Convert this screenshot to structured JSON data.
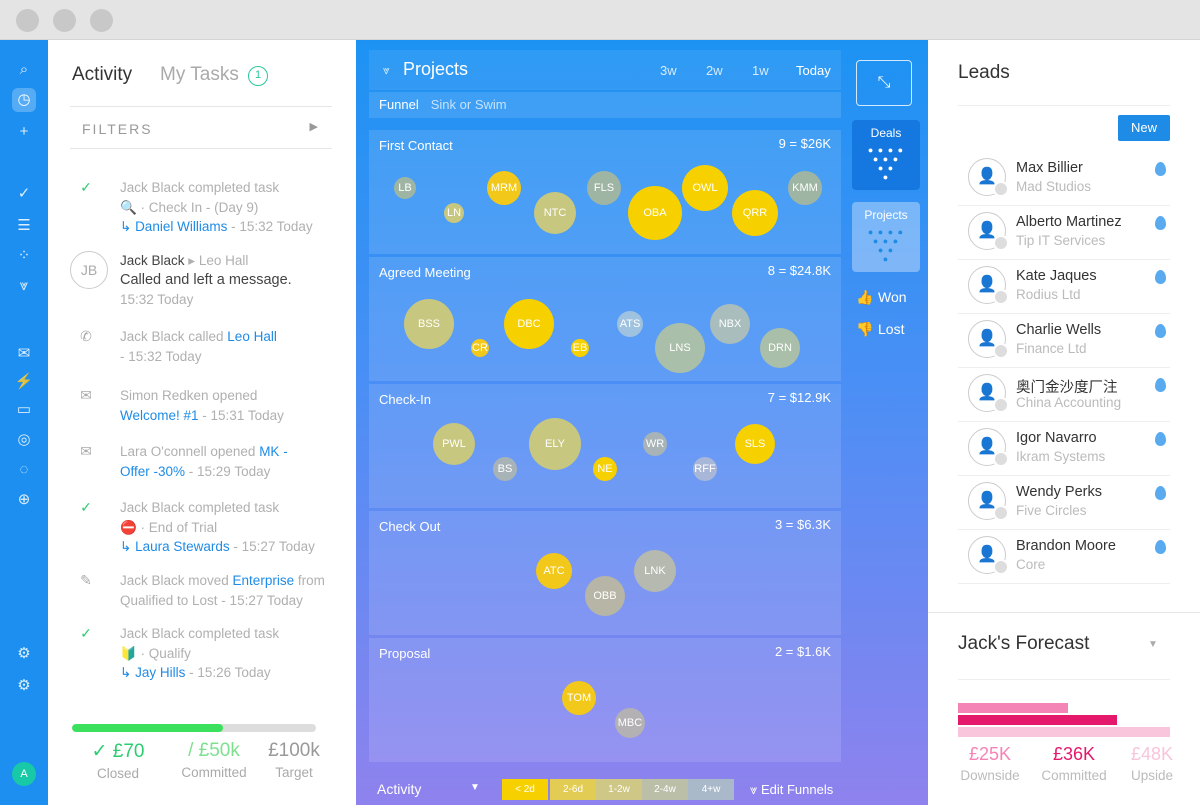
{
  "activity": {
    "tab_activity": "Activity",
    "tab_tasks": "My Tasks",
    "tasks_count": "1",
    "filters_label": "FILTERS",
    "feed": [
      {
        "line1": "Jack Black completed task",
        "line2": "🔍 · Check In - (Day 9)",
        "link": "Daniel Williams",
        "time": " - 15:32 Today"
      },
      {
        "who": "Jack Black",
        "arrow": "▸",
        "target": "Leo Hall",
        "msg": "Called and left a message.",
        "time": "15:32 Today",
        "initials": "JB"
      },
      {
        "pre": "Jack Black called ",
        "link": "Leo Hall",
        "time": "- 15:32 Today"
      },
      {
        "pre": "Simon Redken opened",
        "link": "Welcome! #1",
        "time": " - 15:31 Today"
      },
      {
        "pre": "Lara O'connell opened ",
        "link": "MK -",
        "link2": "Offer -30%",
        "time": " - 15:29 Today"
      },
      {
        "line1": "Jack Black completed task",
        "line2": "⛔ · End of Trial",
        "link": "Laura Stewards",
        "time": " - 15:27 Today"
      },
      {
        "pre": "Jack Black moved ",
        "link": "Enterprise",
        "post": " from",
        "line2": "Qualified to Lost - 15:27 Today"
      },
      {
        "line1": "Jack Black completed task",
        "line2": "🔰 · Qualify",
        "link": "Jay Hills",
        "time": " - 15:26 Today"
      }
    ],
    "progress_fraction": 0.62,
    "stats": [
      {
        "value": "✓ £70",
        "label": "Closed",
        "color": "#2ecc71"
      },
      {
        "value": "/ £50k",
        "label": "Committed",
        "color": "#7ee08f"
      },
      {
        "value": "£100k",
        "label": "Target",
        "color": "#999999"
      }
    ]
  },
  "funnel": {
    "title": "Projects",
    "periods": [
      "3w",
      "2w",
      "1w",
      "Today"
    ],
    "active_period": "Today",
    "funnel_label": "Funnel",
    "funnel_name": "Sink or Swim",
    "stages": [
      {
        "name": "First Contact",
        "total": "9 = $26K",
        "bubbles": [
          {
            "label": "LB",
            "color": "#9fb5a3"
          },
          {
            "label": "LN",
            "color": "#c8c77f"
          },
          {
            "label": "MRM",
            "color": "#f2c81a"
          },
          {
            "label": "NTC",
            "color": "#c8c77f"
          },
          {
            "label": "FLS",
            "color": "#9fb5a3"
          },
          {
            "label": "OBA",
            "color": "#f7d000"
          },
          {
            "label": "OWL",
            "color": "#f7d000"
          },
          {
            "label": "QRR",
            "color": "#f7d000"
          },
          {
            "label": "KMM",
            "color": "#9fb5a3"
          }
        ]
      },
      {
        "name": "Agreed Meeting",
        "total": "8 = $24.8K",
        "bubbles": [
          {
            "label": "BSS",
            "color": "#c8c77f"
          },
          {
            "label": "CR",
            "color": "#f2c81a"
          },
          {
            "label": "DBC",
            "color": "#f7d000"
          },
          {
            "label": "EB",
            "color": "#f7d000"
          },
          {
            "label": "ATS",
            "color": "#9ec2e0"
          },
          {
            "label": "LNS",
            "color": "#a9bfa9"
          },
          {
            "label": "NBX",
            "color": "#a8bdbc"
          },
          {
            "label": "DRN",
            "color": "#a9bfa9"
          }
        ]
      },
      {
        "name": "Check-In",
        "total": "7 = $12.9K",
        "bubbles": [
          {
            "label": "PWL",
            "color": "#c8c77f"
          },
          {
            "label": "BS",
            "color": "#a8b3b8"
          },
          {
            "label": "ELY",
            "color": "#c8c77f"
          },
          {
            "label": "NE",
            "color": "#f7d000"
          },
          {
            "label": "WR",
            "color": "#a8b3b8"
          },
          {
            "label": "RFF",
            "color": "#a8b6d8"
          },
          {
            "label": "SLS",
            "color": "#f7d000"
          }
        ]
      },
      {
        "name": "Check Out",
        "total": "3 = $6.3K",
        "bubbles": [
          {
            "label": "ATC",
            "color": "#f2c81a"
          },
          {
            "label": "OBB",
            "color": "#b7b5a5"
          },
          {
            "label": "LNK",
            "color": "#b5b9b0"
          }
        ]
      },
      {
        "name": "Proposal",
        "total": "2 = $1.6K",
        "bubbles": [
          {
            "label": "TOM",
            "color": "#f2c81a"
          },
          {
            "label": "MBC",
            "color": "#b3b1b3"
          }
        ]
      }
    ],
    "bottom": {
      "activity_label": "Activity",
      "legend": [
        {
          "label": "< 2d",
          "color": "#f7d000"
        },
        {
          "label": "2-6d",
          "color": "#e2cc53"
        },
        {
          "label": "1-2w",
          "color": "#cfc785"
        },
        {
          "label": "2-4w",
          "color": "#bbbfa8"
        },
        {
          "label": "4+w",
          "color": "#a9b9c9"
        }
      ],
      "edit_label": "Edit Funnels"
    },
    "side": {
      "deals": "Deals",
      "projects": "Projects",
      "won": "Won",
      "lost": "Lost"
    }
  },
  "leads": {
    "title": "Leads",
    "new_label": "New",
    "items": [
      {
        "name": "Max Billier",
        "company": "Mad Studios"
      },
      {
        "name": "Alberto Martinez",
        "company": "Tip IT Services"
      },
      {
        "name": "Kate Jaques",
        "company": "Rodius Ltd"
      },
      {
        "name": "Charlie Wells",
        "company": "Finance Ltd"
      },
      {
        "name": "奥门金沙度厂注",
        "company": "China Accounting"
      },
      {
        "name": "Igor Navarro",
        "company": "Ikram Systems"
      },
      {
        "name": "Wendy Perks",
        "company": "Five Circles"
      },
      {
        "name": "Brandon Moore",
        "company": "Core"
      }
    ]
  },
  "forecast": {
    "title": "Jack's Forecast",
    "stats": [
      {
        "value": "£25K",
        "label": "Downside",
        "color": "#f584b6"
      },
      {
        "value": "£36K",
        "label": "Committed",
        "color": "#e5196b"
      },
      {
        "value": "£48K",
        "label": "Upside",
        "color": "#f8c5dc"
      }
    ],
    "bar_values": [
      25,
      36,
      48
    ],
    "bar_max": 48
  }
}
